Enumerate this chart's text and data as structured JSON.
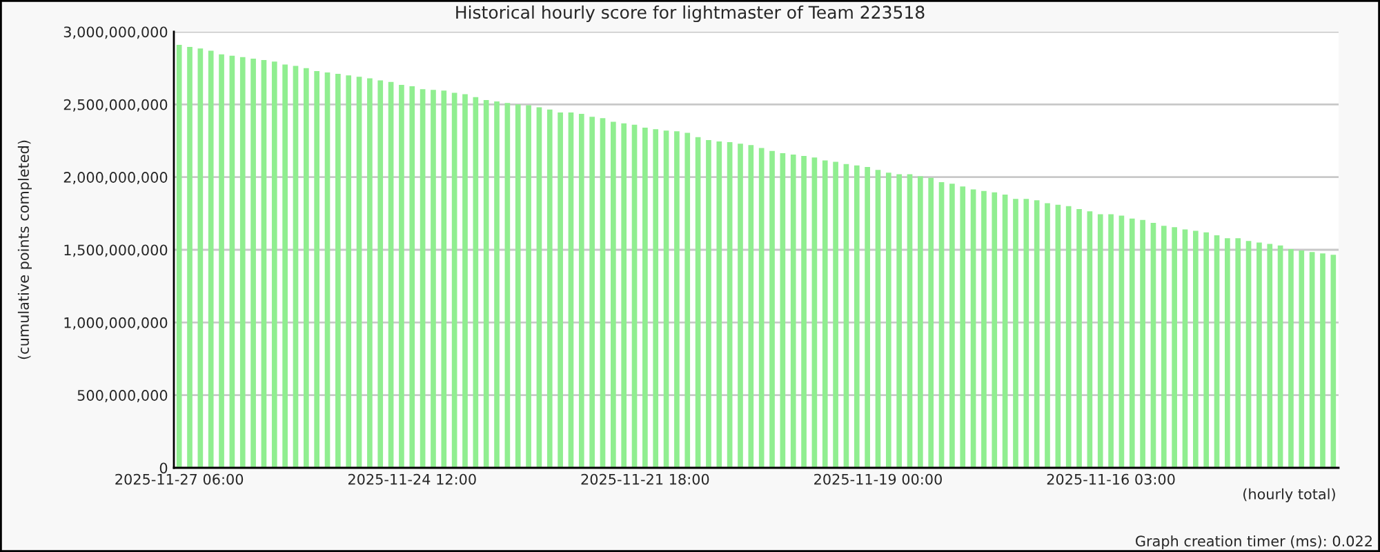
{
  "chart_data": {
    "type": "bar",
    "title": "Historical hourly score for lightmaster of Team 223518",
    "xlabel": "(hourly total)",
    "ylabel": "(cumulative points completed)",
    "annotations": [
      "Graph creation timer (ms): 0.022"
    ],
    "categories": [
      "2025-11-27 06:00",
      null,
      null,
      null,
      null,
      null,
      null,
      null,
      null,
      null,
      null,
      null,
      null,
      null,
      null,
      null,
      null,
      null,
      null,
      null,
      null,
      null,
      "2025-11-24 12:00",
      null,
      null,
      null,
      null,
      null,
      null,
      null,
      null,
      null,
      null,
      null,
      null,
      null,
      null,
      null,
      null,
      null,
      null,
      null,
      null,
      null,
      "2025-11-21 18:00",
      null,
      null,
      null,
      null,
      null,
      null,
      null,
      null,
      null,
      null,
      null,
      null,
      null,
      null,
      null,
      null,
      null,
      null,
      null,
      null,
      null,
      "2025-11-19 00:00",
      null,
      null,
      null,
      null,
      null,
      null,
      null,
      null,
      null,
      null,
      null,
      null,
      null,
      null,
      null,
      null,
      null,
      null,
      null,
      null,
      null,
      "2025-11-16 03:00",
      null,
      null,
      null,
      null,
      null,
      null,
      null,
      null,
      null,
      null,
      null,
      null,
      null,
      null,
      null,
      null,
      null,
      null,
      null,
      null,
      null
    ],
    "values": [
      2910000000,
      2895000000,
      2885000000,
      2870000000,
      2845000000,
      2835000000,
      2825000000,
      2815000000,
      2805000000,
      2795000000,
      2775000000,
      2765000000,
      2750000000,
      2730000000,
      2720000000,
      2710000000,
      2700000000,
      2690000000,
      2680000000,
      2665000000,
      2655000000,
      2635000000,
      2625000000,
      2605000000,
      2600000000,
      2595000000,
      2580000000,
      2570000000,
      2550000000,
      2530000000,
      2520000000,
      2510000000,
      2500000000,
      2495000000,
      2480000000,
      2465000000,
      2445000000,
      2445000000,
      2435000000,
      2415000000,
      2405000000,
      2380000000,
      2370000000,
      2360000000,
      2340000000,
      2330000000,
      2320000000,
      2315000000,
      2305000000,
      2275000000,
      2255000000,
      2245000000,
      2240000000,
      2230000000,
      2220000000,
      2200000000,
      2180000000,
      2165000000,
      2155000000,
      2145000000,
      2135000000,
      2115000000,
      2105000000,
      2090000000,
      2080000000,
      2070000000,
      2050000000,
      2030000000,
      2020000000,
      2020000000,
      2005000000,
      1995000000,
      1965000000,
      1955000000,
      1935000000,
      1915000000,
      1905000000,
      1895000000,
      1880000000,
      1850000000,
      1850000000,
      1840000000,
      1820000000,
      1810000000,
      1800000000,
      1780000000,
      1765000000,
      1745000000,
      1745000000,
      1735000000,
      1715000000,
      1705000000,
      1685000000,
      1665000000,
      1655000000,
      1640000000,
      1630000000,
      1620000000,
      1600000000,
      1580000000,
      1580000000,
      1560000000,
      1550000000,
      1540000000,
      1530000000,
      1505000000,
      1495000000,
      1485000000,
      1475000000,
      1465000000
    ],
    "color": "#90ee90",
    "ylim": [
      0,
      3000000000
    ],
    "yticks": [
      {
        "value": 0,
        "label": "0"
      },
      {
        "value": 500000000,
        "label": "500,000,000"
      },
      {
        "value": 1000000000,
        "label": "1,000,000,000"
      },
      {
        "value": 1500000000,
        "label": "1,500,000,000"
      },
      {
        "value": 2000000000,
        "label": "2,000,000,000"
      },
      {
        "value": 2500000000,
        "label": "2,500,000,000"
      },
      {
        "value": 3000000000,
        "label": "3,000,000,000"
      }
    ],
    "grid": "y"
  }
}
